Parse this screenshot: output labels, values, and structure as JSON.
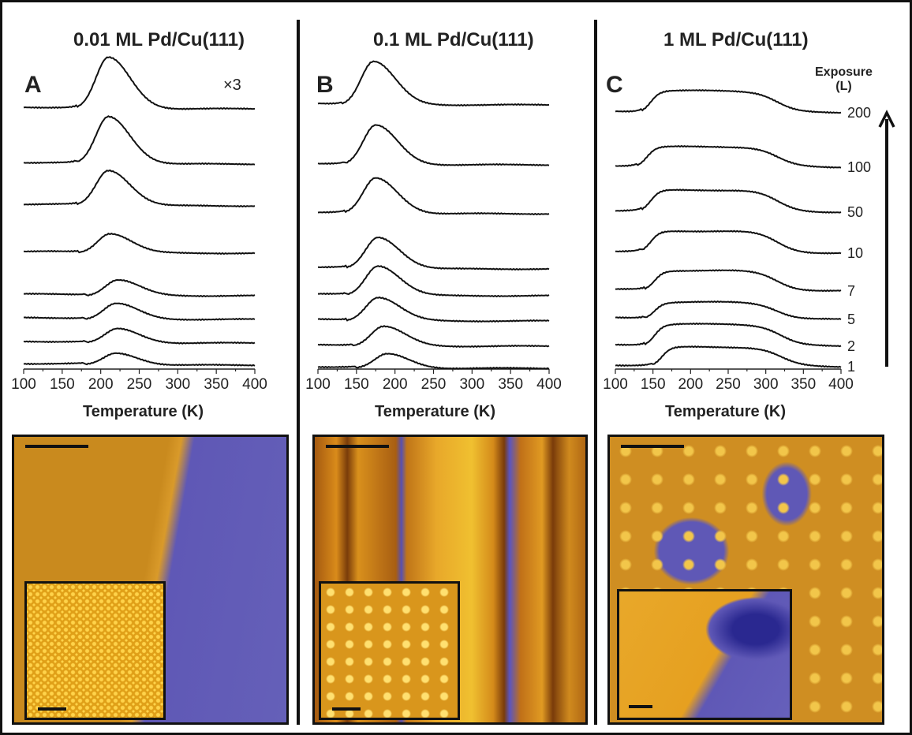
{
  "panels": [
    {
      "letter": "A",
      "title": "0.01 ML Pd/Cu(111)",
      "note": "×3"
    },
    {
      "letter": "B",
      "title": "0.1 ML Pd/Cu(111)"
    },
    {
      "letter": "C",
      "title": "1 ML Pd/Cu(111)"
    }
  ],
  "exposure_label": "Exposure",
  "exposure_unit": "(L)",
  "chart_data": [
    {
      "type": "line",
      "title": "0.01 ML Pd/Cu(111)",
      "xlabel": "Temperature (K)",
      "ylabel": "",
      "xlim": [
        100,
        400
      ],
      "xticks": [
        "100",
        "150",
        "200",
        "250",
        "300",
        "350",
        "400"
      ],
      "exposures_L": [
        1,
        2,
        5,
        7,
        10,
        50,
        100,
        200
      ],
      "peak_K": [
        220,
        222,
        220,
        222,
        212,
        210,
        210,
        210
      ],
      "relative_peak_height": [
        15,
        18,
        20,
        20,
        25,
        45,
        60,
        65
      ],
      "note": "×3"
    },
    {
      "type": "line",
      "title": "0.1 ML Pd/Cu(111)",
      "xlabel": "Temperature (K)",
      "ylabel": "",
      "xlim": [
        100,
        400
      ],
      "xticks": [
        "100",
        "150",
        "200",
        "250",
        "300",
        "350",
        "400"
      ],
      "exposures_L": [
        1,
        2,
        5,
        7,
        10,
        50,
        100,
        200
      ],
      "peak_K": [
        190,
        185,
        178,
        178,
        178,
        175,
        175,
        172
      ],
      "relative_peak_height": [
        18,
        25,
        30,
        38,
        40,
        45,
        50,
        55
      ]
    },
    {
      "type": "line",
      "title": "1 ML Pd/Cu(111)",
      "xlabel": "Temperature (K)",
      "ylabel": "",
      "xlim": [
        100,
        400
      ],
      "xticks": [
        "100",
        "150",
        "200",
        "250",
        "300",
        "350",
        "400"
      ],
      "exposures_L": [
        1,
        2,
        5,
        7,
        10,
        50,
        100,
        200
      ],
      "exposure_labels": [
        "1",
        "2",
        "5",
        "7",
        "10",
        "50",
        "100",
        "200"
      ],
      "onset_K": [
        150,
        140,
        140,
        140,
        135,
        135,
        130,
        135
      ],
      "end_K": [
        355,
        355,
        350,
        350,
        350,
        350,
        350,
        350
      ],
      "relative_plateau_height": [
        25,
        28,
        22,
        26,
        28,
        28,
        26,
        28
      ]
    }
  ],
  "colors": {
    "trace": "#111111",
    "stm_low": "#5a55b0",
    "stm_high": "#e6a31c"
  }
}
